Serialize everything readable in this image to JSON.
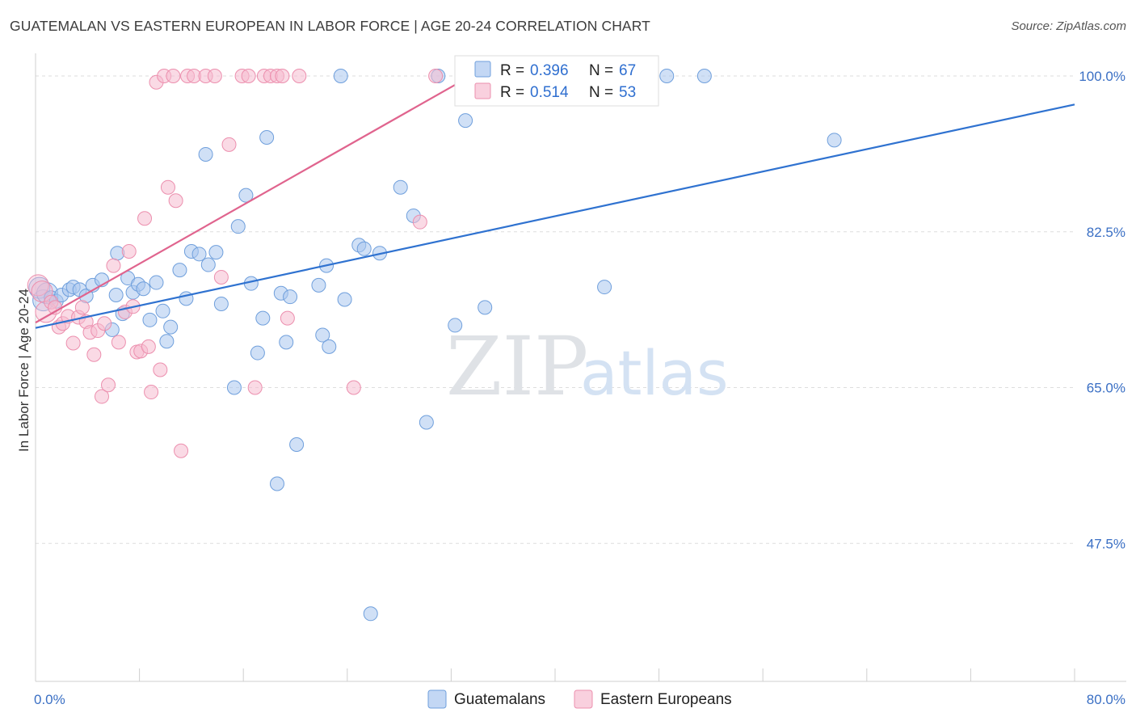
{
  "header": {
    "title": "GUATEMALAN VS EASTERN EUROPEAN IN LABOR FORCE | AGE 20-24 CORRELATION CHART",
    "source": "Source: ZipAtlas.com"
  },
  "watermark": {
    "zip": "ZIP",
    "atlas": "atlas"
  },
  "colors": {
    "blue_fill": "#a9c6ef",
    "blue_stroke": "#6f9fdc",
    "blue_line": "#2f72d0",
    "pink_fill": "#f6bcd0",
    "pink_stroke": "#ec8fae",
    "pink_line": "#e0648e",
    "grid": "#dddddd",
    "tick_text": "#3a6fc4"
  },
  "legend": {
    "r_label": "R =",
    "n_label": "N =",
    "blue": {
      "r": "0.396",
      "n": "67"
    },
    "pink": {
      "r": "0.514",
      "n": "53"
    }
  },
  "chart_data": {
    "type": "scatter",
    "title": "GUATEMALAN VS EASTERN EUROPEAN IN LABOR FORCE | AGE 20-24 CORRELATION CHART",
    "xlabel": "",
    "ylabel": "In Labor Force | Age 20-24",
    "xlim": [
      0,
      80
    ],
    "ylim": [
      32,
      102
    ],
    "x_tick_labels": [
      "0.0%",
      "80.0%"
    ],
    "y_ticks": [
      47.5,
      65.0,
      82.5,
      100.0
    ],
    "y_tick_labels": [
      "47.5%",
      "65.0%",
      "82.5%",
      "100.0%"
    ],
    "grid": true,
    "legend_position": "top-center",
    "series": [
      {
        "name": "Guatemalans",
        "color": "#a9c6ef",
        "trend": {
          "x": [
            0,
            80
          ],
          "y": [
            71.7,
            96.8
          ]
        },
        "points": [
          [
            0.3,
            76.2
          ],
          [
            0.6,
            74.8
          ],
          [
            0.9,
            75.6
          ],
          [
            1.2,
            75.1
          ],
          [
            1.6,
            74.7
          ],
          [
            2.0,
            75.4
          ],
          [
            2.6,
            76.0
          ],
          [
            2.9,
            76.3
          ],
          [
            3.4,
            76.0
          ],
          [
            3.9,
            75.3
          ],
          [
            4.4,
            76.5
          ],
          [
            5.1,
            77.1
          ],
          [
            5.9,
            71.5
          ],
          [
            6.2,
            75.4
          ],
          [
            6.3,
            80.1
          ],
          [
            6.7,
            73.3
          ],
          [
            7.1,
            77.3
          ],
          [
            7.5,
            75.7
          ],
          [
            7.9,
            76.6
          ],
          [
            8.3,
            76.1
          ],
          [
            8.8,
            72.6
          ],
          [
            9.3,
            76.8
          ],
          [
            9.8,
            73.6
          ],
          [
            10.1,
            70.2
          ],
          [
            10.4,
            71.8
          ],
          [
            11.1,
            78.2
          ],
          [
            11.6,
            75.0
          ],
          [
            12.0,
            80.3
          ],
          [
            12.6,
            80.0
          ],
          [
            13.1,
            91.2
          ],
          [
            13.3,
            78.8
          ],
          [
            13.9,
            80.2
          ],
          [
            14.3,
            74.4
          ],
          [
            15.3,
            65.0
          ],
          [
            15.6,
            83.1
          ],
          [
            16.2,
            86.6
          ],
          [
            16.6,
            76.7
          ],
          [
            17.1,
            68.9
          ],
          [
            17.5,
            72.8
          ],
          [
            17.8,
            93.1
          ],
          [
            18.6,
            54.2
          ],
          [
            18.9,
            75.6
          ],
          [
            19.3,
            70.1
          ],
          [
            19.6,
            75.2
          ],
          [
            20.1,
            58.6
          ],
          [
            21.8,
            76.5
          ],
          [
            22.1,
            70.9
          ],
          [
            22.4,
            78.7
          ],
          [
            22.6,
            69.6
          ],
          [
            23.5,
            100.0
          ],
          [
            23.8,
            74.9
          ],
          [
            24.9,
            81.0
          ],
          [
            25.3,
            80.6
          ],
          [
            25.8,
            39.6
          ],
          [
            26.5,
            80.1
          ],
          [
            28.1,
            87.5
          ],
          [
            29.1,
            84.3
          ],
          [
            30.1,
            61.1
          ],
          [
            31.0,
            100.0
          ],
          [
            32.3,
            72.0
          ],
          [
            33.1,
            95.0
          ],
          [
            34.6,
            74.0
          ],
          [
            36.1,
            100.0
          ],
          [
            43.8,
            76.3
          ],
          [
            48.6,
            100.0
          ],
          [
            51.5,
            100.0
          ],
          [
            61.5,
            92.8
          ]
        ]
      },
      {
        "name": "Eastern Europeans",
        "color": "#f6bcd0",
        "trend": {
          "x": [
            0,
            33.5
          ],
          "y": [
            72.3,
            100.0
          ]
        },
        "points": [
          [
            0.2,
            76.5
          ],
          [
            0.5,
            75.8
          ],
          [
            0.8,
            73.5
          ],
          [
            1.2,
            74.6
          ],
          [
            1.5,
            74.0
          ],
          [
            1.8,
            71.8
          ],
          [
            2.1,
            72.2
          ],
          [
            2.5,
            73.0
          ],
          [
            2.9,
            70.0
          ],
          [
            3.3,
            72.9
          ],
          [
            3.6,
            74.0
          ],
          [
            3.9,
            72.4
          ],
          [
            4.2,
            71.2
          ],
          [
            4.5,
            68.7
          ],
          [
            4.8,
            71.4
          ],
          [
            5.1,
            64.0
          ],
          [
            5.3,
            72.2
          ],
          [
            5.6,
            65.3
          ],
          [
            6.0,
            78.7
          ],
          [
            6.4,
            70.1
          ],
          [
            6.9,
            73.5
          ],
          [
            7.2,
            80.3
          ],
          [
            7.5,
            74.1
          ],
          [
            7.8,
            69.0
          ],
          [
            8.1,
            69.1
          ],
          [
            8.4,
            84.0
          ],
          [
            8.7,
            69.6
          ],
          [
            8.9,
            64.5
          ],
          [
            9.3,
            99.3
          ],
          [
            9.6,
            67.0
          ],
          [
            9.9,
            100.0
          ],
          [
            10.2,
            87.5
          ],
          [
            10.6,
            100.0
          ],
          [
            10.8,
            86.0
          ],
          [
            11.2,
            57.9
          ],
          [
            11.7,
            100.0
          ],
          [
            12.2,
            100.0
          ],
          [
            13.1,
            100.0
          ],
          [
            13.8,
            100.0
          ],
          [
            14.3,
            77.4
          ],
          [
            14.9,
            92.3
          ],
          [
            15.9,
            100.0
          ],
          [
            16.4,
            100.0
          ],
          [
            16.9,
            65.0
          ],
          [
            17.6,
            100.0
          ],
          [
            18.1,
            100.0
          ],
          [
            18.6,
            100.0
          ],
          [
            19.0,
            100.0
          ],
          [
            19.4,
            72.8
          ],
          [
            20.3,
            100.0
          ],
          [
            24.5,
            65.0
          ],
          [
            29.6,
            83.6
          ],
          [
            30.8,
            100.0
          ]
        ]
      }
    ]
  }
}
